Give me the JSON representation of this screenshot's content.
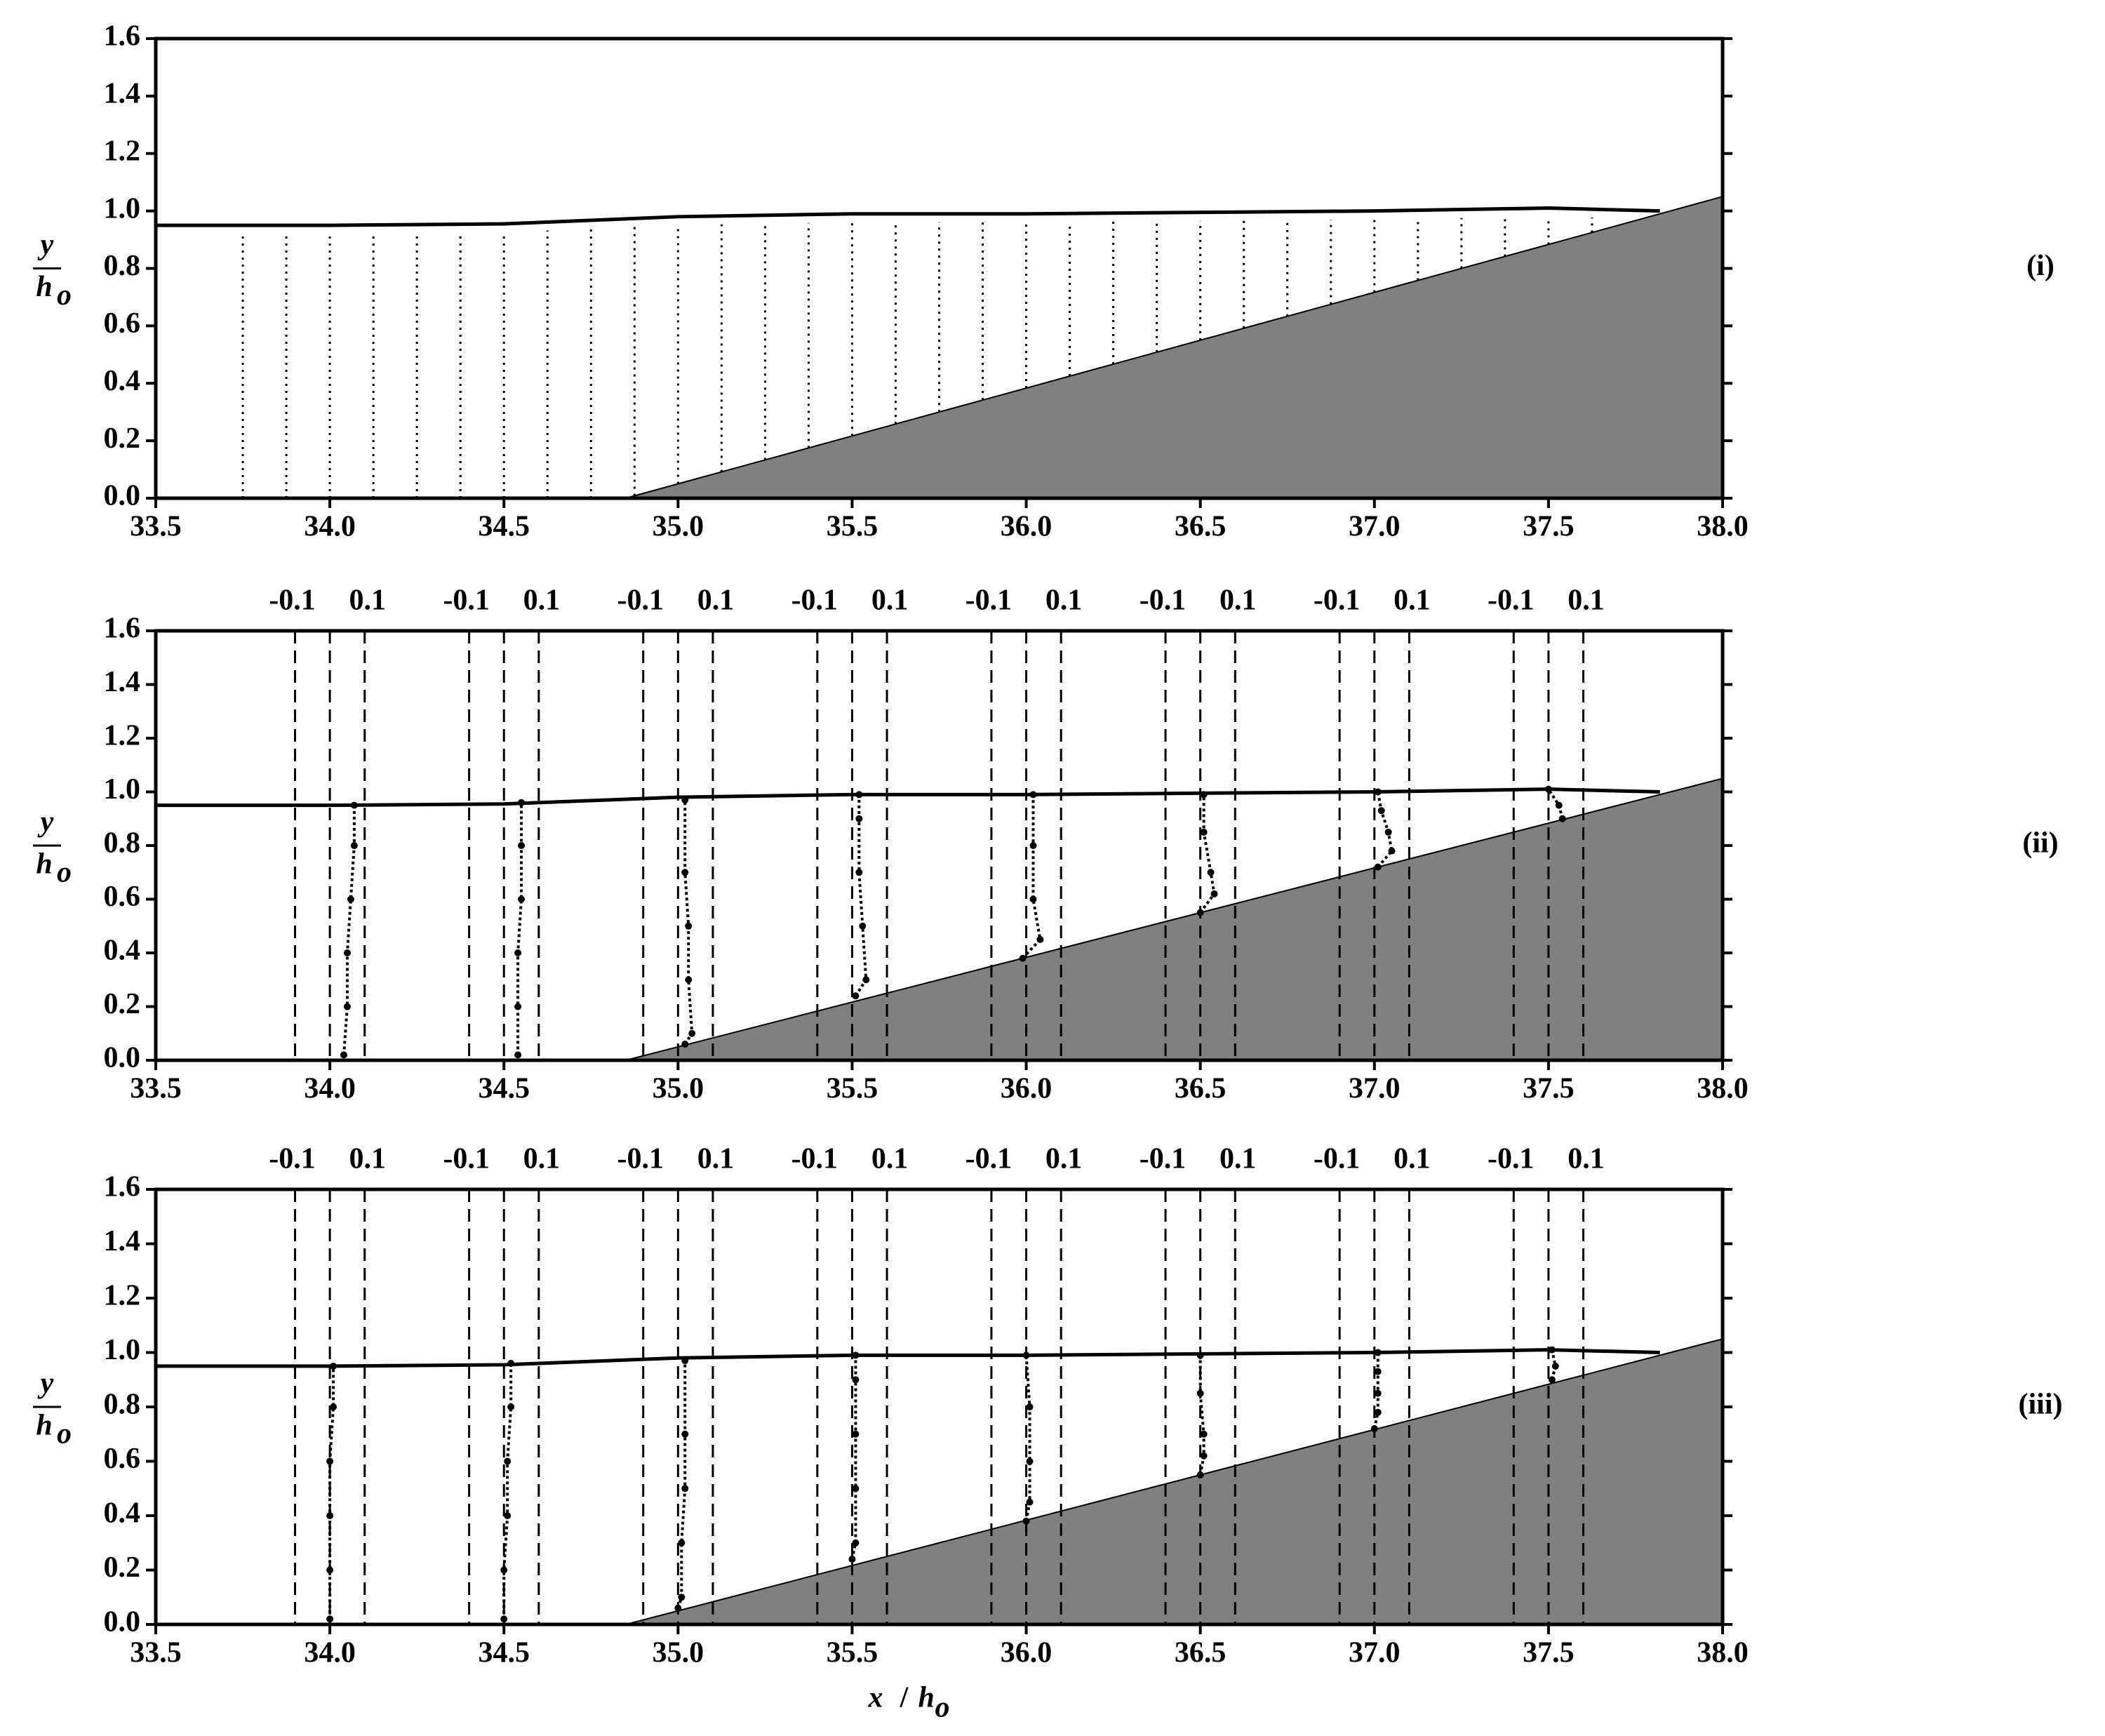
{
  "chart_data": [
    {
      "type": "vector_field",
      "panel_label": "(i)",
      "ylabel": {
        "numerator": "y",
        "denominator": "h",
        "subscript": "o"
      },
      "xlim": [
        33.5,
        38.0
      ],
      "ylim": [
        0,
        1.6
      ],
      "xticks": [
        33.5,
        {
          "value": 34,
          "label": "34.0"
        },
        34.5,
        {
          "value": 35,
          "label": "35.0"
        },
        35.5,
        {
          "value": 36,
          "label": "36.0"
        },
        36.5,
        {
          "value": 37,
          "label": "37.0"
        },
        37.5,
        {
          "value": 38,
          "label": "38.0"
        }
      ],
      "yticks": [
        {
          "value": 0,
          "label": "0.0"
        },
        0.2,
        0.4,
        0.6,
        0.8,
        {
          "value": 1,
          "label": "1.0"
        },
        1.2,
        1.4,
        1.6
      ],
      "surface": {
        "x": [
          33.5,
          34.0,
          34.5,
          35.0,
          35.5,
          36.0,
          36.5,
          37.0,
          37.5,
          37.82
        ],
        "y": [
          0.95,
          0.95,
          0.955,
          0.98,
          0.99,
          0.99,
          0.995,
          1.0,
          1.01,
          1.0
        ]
      },
      "beach": {
        "x": [
          34.85,
          38.0
        ],
        "y": [
          0,
          1.05
        ]
      },
      "columns_x": [
        33.75,
        33.875,
        34.0,
        34.125,
        34.25,
        34.375,
        34.5,
        34.625,
        34.75,
        34.875,
        35.0,
        35.125,
        35.25,
        35.375,
        35.5,
        35.625,
        35.75,
        35.875,
        36.0,
        36.125,
        36.25,
        36.375,
        36.5,
        36.625,
        36.75,
        36.875,
        37.0,
        37.125,
        37.25,
        37.375,
        37.5,
        37.625
      ]
    },
    {
      "type": "velocity_profile",
      "panel_label": "(ii)",
      "ylabel": {
        "numerator": "y",
        "denominator": "h",
        "subscript": "o"
      },
      "xlim": [
        33.5,
        38.0
      ],
      "ylim": [
        0,
        1.6
      ],
      "xticks": [
        33.5,
        {
          "value": 34,
          "label": "34.0"
        },
        34.5,
        {
          "value": 35,
          "label": "35.0"
        },
        35.5,
        {
          "value": 36,
          "label": "36.0"
        },
        36.5,
        {
          "value": 37,
          "label": "37.0"
        },
        37.5,
        {
          "value": 38,
          "label": "38.0"
        }
      ],
      "yticks": [
        {
          "value": 0,
          "label": "0.0"
        },
        0.2,
        0.4,
        0.6,
        0.8,
        {
          "value": 1,
          "label": "1.0"
        },
        1.2,
        1.4,
        1.6
      ],
      "top_ticks": [
        -0.1,
        {
          "value": 0,
          "label": null
        },
        0.1
      ],
      "surface": {
        "x": [
          33.5,
          34.0,
          34.5,
          35.0,
          35.5,
          36.0,
          36.5,
          37.0,
          37.5,
          37.82
        ],
        "y": [
          0.95,
          0.95,
          0.955,
          0.98,
          0.99,
          0.99,
          0.995,
          1.0,
          1.01,
          1.0
        ]
      },
      "beach": {
        "x": [
          34.85,
          38.0
        ],
        "y": [
          0,
          1.05
        ]
      },
      "profiles": [
        {
          "x": 34.0,
          "u": [
            0.04,
            0.05,
            0.05,
            0.06,
            0.07,
            0.07
          ],
          "y": [
            0.02,
            0.2,
            0.4,
            0.6,
            0.8,
            0.95
          ]
        },
        {
          "x": 34.5,
          "u": [
            0.04,
            0.04,
            0.04,
            0.05,
            0.05,
            0.05
          ],
          "y": [
            0.02,
            0.2,
            0.4,
            0.6,
            0.8,
            0.96
          ]
        },
        {
          "x": 35.0,
          "u": [
            0.02,
            0.04,
            0.03,
            0.03,
            0.02,
            0.02
          ],
          "y": [
            0.06,
            0.1,
            0.3,
            0.5,
            0.7,
            0.97
          ]
        },
        {
          "x": 35.5,
          "u": [
            0.01,
            0.04,
            0.03,
            0.02,
            0.02,
            0.02
          ],
          "y": [
            0.24,
            0.3,
            0.5,
            0.7,
            0.9,
            0.99
          ]
        },
        {
          "x": 36.0,
          "u": [
            -0.01,
            0.04,
            0.02,
            0.02,
            0.02
          ],
          "y": [
            0.38,
            0.45,
            0.6,
            0.8,
            0.99
          ]
        },
        {
          "x": 36.5,
          "u": [
            0.0,
            0.04,
            0.03,
            0.01,
            0.01
          ],
          "y": [
            0.55,
            0.62,
            0.7,
            0.85,
            0.99
          ]
        },
        {
          "x": 37.0,
          "u": [
            0.01,
            0.05,
            0.04,
            0.02,
            0.01
          ],
          "y": [
            0.72,
            0.78,
            0.85,
            0.93,
            1.0
          ]
        },
        {
          "x": 37.5,
          "u": [
            0.04,
            0.03,
            0.0
          ],
          "y": [
            0.9,
            0.95,
            1.01
          ]
        }
      ]
    },
    {
      "type": "velocity_profile",
      "panel_label": "(iii)",
      "ylabel": {
        "numerator": "y",
        "denominator": "h",
        "subscript": "o"
      },
      "xlabel": {
        "numerator": "x",
        "denominator": "h",
        "subscript": "o"
      },
      "xlim": [
        33.5,
        38.0
      ],
      "ylim": [
        0,
        1.6
      ],
      "xticks": [
        33.5,
        {
          "value": 34,
          "label": "34.0"
        },
        34.5,
        {
          "value": 35,
          "label": "35.0"
        },
        35.5,
        {
          "value": 36,
          "label": "36.0"
        },
        36.5,
        {
          "value": 37,
          "label": "37.0"
        },
        37.5,
        {
          "value": 38,
          "label": "38.0"
        }
      ],
      "yticks": [
        {
          "value": 0,
          "label": "0.0"
        },
        0.2,
        0.4,
        0.6,
        0.8,
        {
          "value": 1,
          "label": "1.0"
        },
        1.2,
        1.4,
        1.6
      ],
      "top_ticks": [
        -0.1,
        {
          "value": 0,
          "label": null
        },
        0.1
      ],
      "surface": {
        "x": [
          33.5,
          34.0,
          34.5,
          35.0,
          35.5,
          36.0,
          36.5,
          37.0,
          37.5,
          37.82
        ],
        "y": [
          0.95,
          0.95,
          0.955,
          0.98,
          0.99,
          0.99,
          0.995,
          1.0,
          1.01,
          1.0
        ]
      },
      "beach": {
        "x": [
          34.85,
          38.0
        ],
        "y": [
          0,
          1.05
        ]
      },
      "profiles": [
        {
          "x": 34.0,
          "u": [
            0.0,
            0.0,
            0.0,
            0.0,
            0.01,
            0.01
          ],
          "y": [
            0.02,
            0.2,
            0.4,
            0.6,
            0.8,
            0.95
          ]
        },
        {
          "x": 34.5,
          "u": [
            0.0,
            0.0,
            0.01,
            0.01,
            0.02,
            0.02
          ],
          "y": [
            0.02,
            0.2,
            0.4,
            0.6,
            0.8,
            0.96
          ]
        },
        {
          "x": 35.0,
          "u": [
            0.0,
            0.01,
            0.01,
            0.02,
            0.02,
            0.02
          ],
          "y": [
            0.06,
            0.1,
            0.3,
            0.5,
            0.7,
            0.97
          ]
        },
        {
          "x": 35.5,
          "u": [
            0.0,
            0.01,
            0.01,
            0.01,
            0.01,
            0.01
          ],
          "y": [
            0.24,
            0.3,
            0.5,
            0.7,
            0.9,
            0.99
          ]
        },
        {
          "x": 36.0,
          "u": [
            0.0,
            0.01,
            0.01,
            0.01,
            0.0
          ],
          "y": [
            0.38,
            0.45,
            0.6,
            0.8,
            0.99
          ]
        },
        {
          "x": 36.5,
          "u": [
            0.0,
            0.01,
            0.01,
            0.0,
            0.0
          ],
          "y": [
            0.55,
            0.62,
            0.7,
            0.85,
            0.99
          ]
        },
        {
          "x": 37.0,
          "u": [
            0.0,
            0.01,
            0.01,
            0.01,
            0.01
          ],
          "y": [
            0.72,
            0.78,
            0.85,
            0.93,
            1.0
          ]
        },
        {
          "x": 37.5,
          "u": [
            0.01,
            0.02,
            0.01
          ],
          "y": [
            0.9,
            0.95,
            1.01
          ]
        }
      ]
    }
  ]
}
